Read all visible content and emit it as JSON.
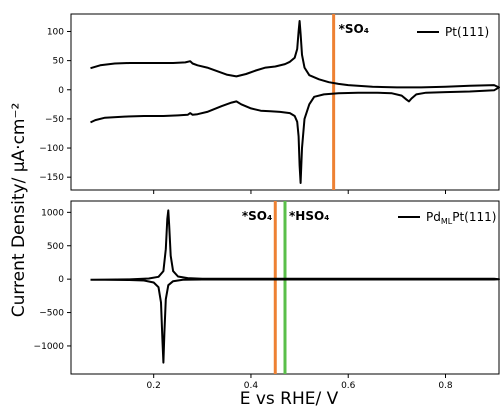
{
  "figure": {
    "xlabel": "E vs RHE/ V",
    "ylabel": "Current Density/ μA·cm⁻²"
  },
  "chart_data": [
    {
      "type": "line",
      "panel": "top",
      "xlim": [
        0.03,
        0.91
      ],
      "ylim": [
        -172,
        130
      ],
      "yticks": [
        -150,
        -100,
        -50,
        0,
        50,
        100
      ],
      "xticks": [
        0.2,
        0.4,
        0.6,
        0.8
      ],
      "show_x_tick_labels": false,
      "legend": {
        "placement": "top-right",
        "label": "Pt(111)"
      },
      "series": [
        {
          "name": "Pt(111)",
          "color": "#000000",
          "x": [
            0.07,
            0.09,
            0.12,
            0.15,
            0.18,
            0.21,
            0.24,
            0.265,
            0.275,
            0.28,
            0.29,
            0.31,
            0.33,
            0.35,
            0.37,
            0.39,
            0.41,
            0.43,
            0.45,
            0.47,
            0.48,
            0.49,
            0.495,
            0.498,
            0.5,
            0.502,
            0.505,
            0.51,
            0.52,
            0.54,
            0.56,
            0.58,
            0.6,
            0.65,
            0.7,
            0.75,
            0.8,
            0.85,
            0.9,
            0.91,
            0.9,
            0.85,
            0.8,
            0.76,
            0.74,
            0.73,
            0.725,
            0.72,
            0.71,
            0.69,
            0.66,
            0.62,
            0.58,
            0.55,
            0.53,
            0.52,
            0.51,
            0.505,
            0.502,
            0.5,
            0.498,
            0.495,
            0.49,
            0.48,
            0.46,
            0.44,
            0.42,
            0.4,
            0.38,
            0.37,
            0.36,
            0.34,
            0.31,
            0.29,
            0.28,
            0.275,
            0.27,
            0.25,
            0.22,
            0.18,
            0.14,
            0.1,
            0.08,
            0.07
          ],
          "y": [
            37,
            42,
            45,
            46,
            46,
            46,
            46,
            47,
            49,
            45,
            42,
            38,
            32,
            26,
            23,
            27,
            33,
            38,
            40,
            44,
            48,
            55,
            70,
            100,
            118,
            96,
            60,
            38,
            25,
            18,
            13,
            10,
            8,
            5,
            4,
            4,
            5,
            7,
            8,
            4,
            -1,
            -3,
            -4,
            -5,
            -8,
            -15,
            -20,
            -17,
            -10,
            -6,
            -5,
            -5,
            -6,
            -8,
            -12,
            -25,
            -50,
            -100,
            -160,
            -130,
            -80,
            -55,
            -45,
            -40,
            -38,
            -37,
            -36,
            -32,
            -25,
            -20,
            -22,
            -28,
            -38,
            -42,
            -43,
            -40,
            -43,
            -44,
            -45,
            -45,
            -46,
            -48,
            -52,
            -56
          ]
        }
      ],
      "vlines": [
        {
          "x": 0.57,
          "color": "#ee8133",
          "label": "*SO₄"
        }
      ]
    },
    {
      "type": "line",
      "panel": "bottom",
      "xlim": [
        0.03,
        0.91
      ],
      "ylim": [
        -1420,
        1170
      ],
      "yticks": [
        -1000,
        -500,
        0,
        500,
        1000
      ],
      "xticks": [
        0.2,
        0.4,
        0.6,
        0.8
      ],
      "show_x_tick_labels": true,
      "legend": {
        "placement": "top-right",
        "label": "Pd",
        "label_sub": "ML",
        "label_tail": "Pt(111)"
      },
      "series": [
        {
          "name": "PdMLPt(111)",
          "color": "#000000",
          "x": [
            0.07,
            0.1,
            0.15,
            0.19,
            0.21,
            0.22,
            0.225,
            0.228,
            0.23,
            0.232,
            0.235,
            0.24,
            0.25,
            0.27,
            0.3,
            0.4,
            0.5,
            0.6,
            0.7,
            0.8,
            0.9,
            0.91,
            0.9,
            0.8,
            0.7,
            0.6,
            0.5,
            0.4,
            0.3,
            0.26,
            0.24,
            0.23,
            0.225,
            0.222,
            0.22,
            0.218,
            0.215,
            0.21,
            0.2,
            0.18,
            0.15,
            0.1,
            0.07
          ],
          "y": [
            -8,
            -6,
            -4,
            10,
            35,
            120,
            450,
            900,
            1030,
            800,
            350,
            120,
            40,
            15,
            5,
            5,
            5,
            5,
            5,
            5,
            5,
            0,
            -5,
            -5,
            -5,
            -5,
            -5,
            -5,
            -5,
            -10,
            -30,
            -90,
            -300,
            -800,
            -1250,
            -900,
            -350,
            -120,
            -50,
            -20,
            -12,
            -10,
            -10
          ]
        }
      ],
      "vlines": [
        {
          "x": 0.45,
          "color": "#ee8133",
          "label": "*SO₄"
        },
        {
          "x": 0.47,
          "color": "#5abf4a",
          "label": "*HSO₄"
        }
      ]
    }
  ]
}
